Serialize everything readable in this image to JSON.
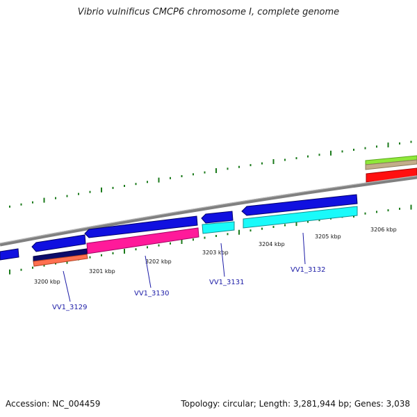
{
  "title": "Vibrio vulnificus CMCP6 chromosome I, complete genome",
  "footer": {
    "accession": "Accession: NC_004459",
    "summary": "Topology: circular; Length: 3,281,944 bp; Genes: 3,038"
  },
  "colors": {
    "backbone": "#7f7f7f",
    "gc_skew": "#1a7a1a",
    "forward_cds": "#1010e0",
    "label_line": "#1a1aa6"
  },
  "ticks": [
    "3200 kbp",
    "3201 kbp",
    "3202 kbp",
    "3203 kbp",
    "3204 kbp",
    "3205 kbp",
    "3206 kbp"
  ],
  "genes": [
    "VV1_3129",
    "VV1_3130",
    "VV1_3131",
    "VV1_3132"
  ]
}
